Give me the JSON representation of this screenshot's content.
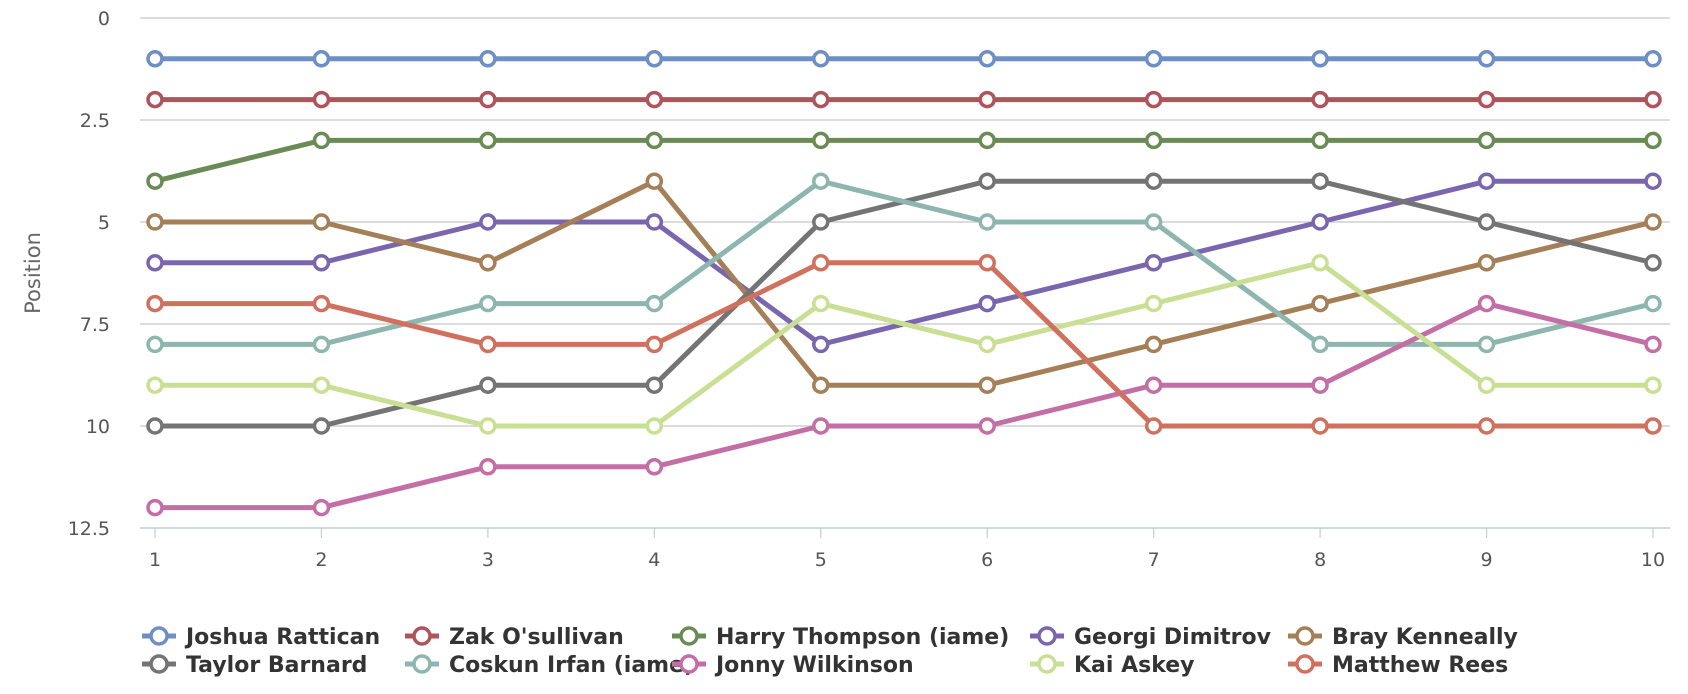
{
  "chart_data": {
    "type": "line",
    "title": "",
    "xlabel": "",
    "ylabel": "Position",
    "y_reversed": true,
    "ylim": [
      0,
      12.5
    ],
    "y_ticks": [
      "0",
      "2.5",
      "5",
      "7.5",
      "10",
      "12.5"
    ],
    "x": [
      "1",
      "2",
      "3",
      "4",
      "5",
      "6",
      "7",
      "8",
      "9",
      "10"
    ],
    "grid": true,
    "legend_position": "bottom",
    "series": [
      {
        "name": "Joshua Rattican",
        "color": "#6f8fc4",
        "values": [
          1,
          1,
          1,
          1,
          1,
          1,
          1,
          1,
          1,
          1
        ]
      },
      {
        "name": "Zak O'sullivan",
        "color": "#b0545c",
        "values": [
          2,
          2,
          2,
          2,
          2,
          2,
          2,
          2,
          2,
          2
        ]
      },
      {
        "name": "Harry Thompson (iame)",
        "color": "#6a8b55",
        "values": [
          4,
          3,
          3,
          3,
          3,
          3,
          3,
          3,
          3,
          3
        ]
      },
      {
        "name": "Georgi Dimitrov",
        "color": "#7a66ad",
        "values": [
          6,
          6,
          5,
          5,
          8,
          7,
          6,
          5,
          4,
          4
        ]
      },
      {
        "name": "Bray Kenneally",
        "color": "#a47f58",
        "values": [
          5,
          5,
          6,
          4,
          9,
          9,
          8,
          7,
          6,
          5
        ]
      },
      {
        "name": "Taylor Barnard",
        "color": "#747474",
        "values": [
          10,
          10,
          9,
          9,
          5,
          4,
          4,
          4,
          5,
          6
        ]
      },
      {
        "name": "Coskun Irfan (iame)",
        "color": "#8cb6ae",
        "values": [
          8,
          8,
          7,
          7,
          4,
          5,
          5,
          8,
          8,
          7
        ]
      },
      {
        "name": "Jonny Wilkinson",
        "color": "#c46ea6",
        "values": [
          12,
          12,
          11,
          11,
          10,
          10,
          9,
          9,
          7,
          8
        ]
      },
      {
        "name": "Kai Askey",
        "color": "#c9df93",
        "values": [
          9,
          9,
          10,
          10,
          7,
          8,
          7,
          6,
          9,
          9
        ]
      },
      {
        "name": "Matthew Rees",
        "color": "#d0705f",
        "values": [
          7,
          7,
          8,
          8,
          6,
          6,
          10,
          10,
          10,
          10
        ]
      }
    ]
  }
}
